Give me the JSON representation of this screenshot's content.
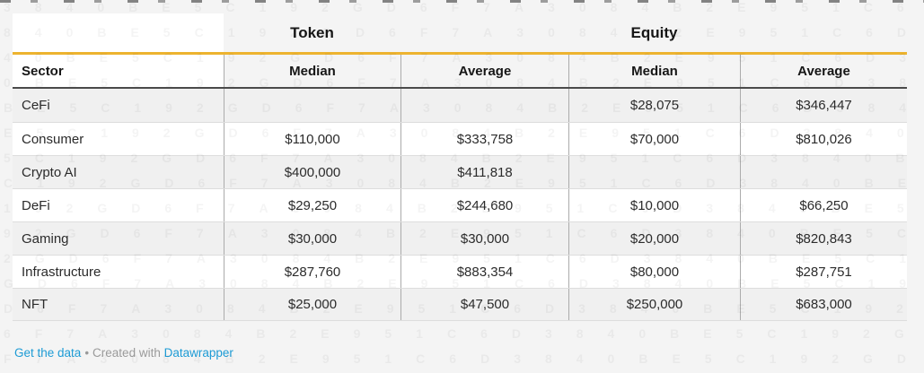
{
  "colors": {
    "page_bg": "#f4f4f4",
    "accent_rule": "#edb32f",
    "header_rule": "#4a4a4a",
    "zebra": "#f0f0f0",
    "link_blue": "#1d9bd5",
    "footer_gray": "#9a9a9a"
  },
  "table": {
    "group_headers": [
      {
        "label": "Token"
      },
      {
        "label": "Equity"
      }
    ],
    "column_headers": {
      "sector": "Sector",
      "token_median": "Median",
      "token_average": "Average",
      "equity_median": "Median",
      "equity_average": "Average"
    },
    "rows": [
      {
        "sector": "CeFi",
        "token_median": "",
        "token_average": "",
        "equity_median": "$28,075",
        "equity_average": "$346,447"
      },
      {
        "sector": "Consumer",
        "token_median": "$110,000",
        "token_average": "$333,758",
        "equity_median": "$70,000",
        "equity_average": "$810,026"
      },
      {
        "sector": "Crypto AI",
        "token_median": "$400,000",
        "token_average": "$411,818",
        "equity_median": "",
        "equity_average": ""
      },
      {
        "sector": "DeFi",
        "token_median": "$29,250",
        "token_average": "$244,680",
        "equity_median": "$10,000",
        "equity_average": "$66,250"
      },
      {
        "sector": "Gaming",
        "token_median": "$30,000",
        "token_average": "$30,000",
        "equity_median": "$20,000",
        "equity_average": "$820,843"
      },
      {
        "sector": "Infrastructure",
        "token_median": "$287,760",
        "token_average": "$883,354",
        "equity_median": "$80,000",
        "equity_average": "$287,751"
      },
      {
        "sector": "NFT",
        "token_median": "$25,000",
        "token_average": "$47,500",
        "equity_median": "$250,000",
        "equity_average": "$683,000"
      }
    ]
  },
  "chart_data": {
    "type": "table",
    "title": "",
    "column_groups": [
      "Token",
      "Equity"
    ],
    "columns": [
      "Sector",
      "Token Median",
      "Token Average",
      "Equity Median",
      "Equity Average"
    ],
    "rows": [
      [
        "CeFi",
        null,
        null,
        28075,
        346447
      ],
      [
        "Consumer",
        110000,
        333758,
        70000,
        810026
      ],
      [
        "Crypto AI",
        400000,
        411818,
        null,
        null
      ],
      [
        "DeFi",
        29250,
        244680,
        10000,
        66250
      ],
      [
        "Gaming",
        30000,
        30000,
        20000,
        820843
      ],
      [
        "Infrastructure",
        287760,
        883354,
        80000,
        287751
      ],
      [
        "NFT",
        25000,
        47500,
        250000,
        683000
      ]
    ]
  },
  "footer": {
    "get_data_label": "Get the data",
    "separator": "•",
    "created_with": "Created with",
    "brand": "Datawrapper"
  },
  "watermark": {
    "chars": "3 8 4 0 B E 5 C 1 9 2 G D 6 F 7 A 3 0 8 4 B 2 E 9 5 1 C 6 D "
  }
}
